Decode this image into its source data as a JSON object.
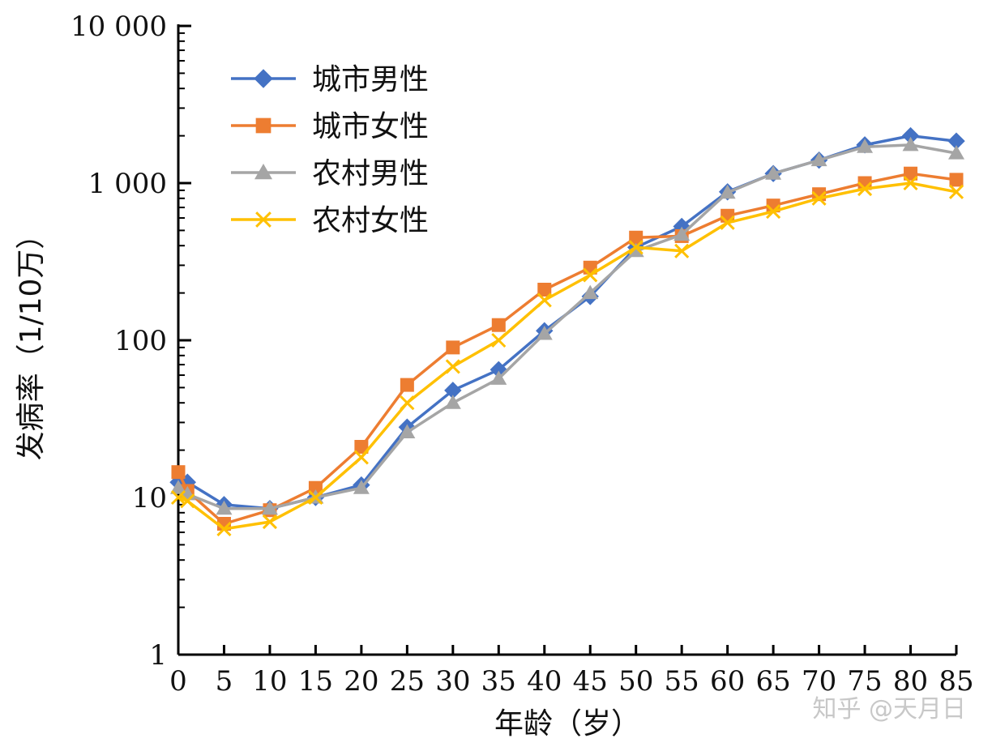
{
  "watermark": "知乎 @天月日",
  "chart_data": {
    "type": "line",
    "title": "",
    "xlabel": "年龄（岁）",
    "ylabel": "发病率（1/10万）",
    "yscale": "log",
    "ylim": [
      1,
      10000
    ],
    "xlim": [
      0,
      85
    ],
    "grid": false,
    "legend_position": "top-left",
    "x": [
      0,
      1,
      5,
      10,
      15,
      20,
      25,
      30,
      35,
      40,
      45,
      50,
      55,
      60,
      65,
      70,
      75,
      80,
      85
    ],
    "x_ticks": [
      "0",
      "5",
      "10",
      "15",
      "20",
      "25",
      "30",
      "35",
      "40",
      "45",
      "50",
      "55",
      "60",
      "65",
      "70",
      "75",
      "80",
      "85"
    ],
    "y_ticks": [
      {
        "value": 1,
        "label": "1"
      },
      {
        "value": 10,
        "label": "10"
      },
      {
        "value": 100,
        "label": "100"
      },
      {
        "value": 1000,
        "label": "1 000"
      },
      {
        "value": 10000,
        "label": "10 000"
      }
    ],
    "series": [
      {
        "name": "城市男性",
        "color": "#4472C4",
        "marker": "diamond",
        "values": [
          12.5,
          12.5,
          9,
          8.5,
          10,
          12,
          28,
          48,
          65,
          115,
          190,
          390,
          530,
          880,
          1150,
          1400,
          1750,
          2000,
          1850
        ]
      },
      {
        "name": "城市女性",
        "color": "#ED7D31",
        "marker": "square",
        "values": [
          14.5,
          11,
          6.8,
          8.3,
          11.5,
          21,
          52,
          90,
          125,
          210,
          290,
          450,
          460,
          620,
          720,
          850,
          1000,
          1150,
          1050
        ]
      },
      {
        "name": "农村男性",
        "color": "#A5A5A5",
        "marker": "triangle",
        "values": [
          11.5,
          10.5,
          8.5,
          8.5,
          10,
          11.5,
          26,
          40,
          57,
          110,
          200,
          370,
          470,
          870,
          1150,
          1400,
          1700,
          1750,
          1550
        ]
      },
      {
        "name": "农村女性",
        "color": "#FFC000",
        "marker": "x",
        "values": [
          10,
          9.5,
          6.3,
          7,
          10,
          18,
          40,
          68,
          100,
          180,
          260,
          390,
          370,
          560,
          660,
          800,
          920,
          1000,
          880
        ]
      }
    ]
  }
}
